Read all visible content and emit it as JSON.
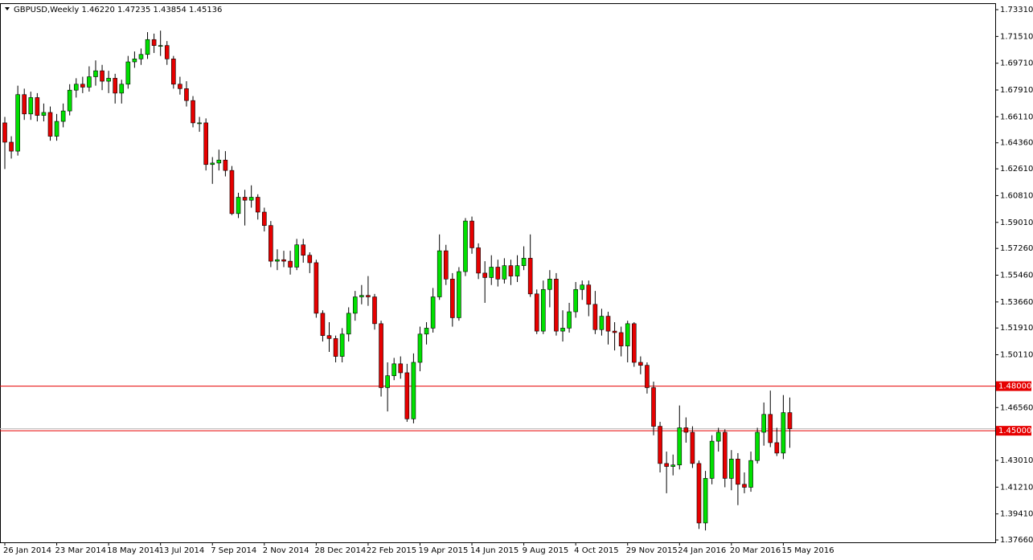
{
  "chart_data": {
    "type": "candlestick",
    "title": "GBPUSD,Weekly  1.46220 1.47235 1.43854 1.45136",
    "categories": [
      "26 Jan 2014",
      null,
      null,
      null,
      null,
      null,
      null,
      null,
      "23 Mar 2014",
      null,
      null,
      null,
      null,
      null,
      null,
      null,
      "18 May 2014",
      null,
      null,
      null,
      null,
      null,
      null,
      null,
      "13 Jul 2014",
      null,
      null,
      null,
      null,
      null,
      null,
      null,
      "7 Sep 2014",
      null,
      null,
      null,
      null,
      null,
      null,
      null,
      "2 Nov 2014",
      null,
      null,
      null,
      null,
      null,
      null,
      null,
      "28 Dec 2014",
      null,
      null,
      null,
      null,
      null,
      null,
      null,
      "22 Feb 2015",
      null,
      null,
      null,
      null,
      null,
      null,
      null,
      "19 Apr 2015",
      null,
      null,
      null,
      null,
      null,
      null,
      null,
      "14 Jun 2015",
      null,
      null,
      null,
      null,
      null,
      null,
      null,
      "9 Aug 2015",
      null,
      null,
      null,
      null,
      null,
      null,
      null,
      "4 Oct 2015",
      null,
      null,
      null,
      null,
      null,
      null,
      null,
      "29 Nov 2015",
      null,
      null,
      null,
      null,
      null,
      null,
      null,
      "24 Jan 2016",
      null,
      null,
      null,
      null,
      null,
      null,
      null,
      "20 Mar 2016",
      null,
      null,
      null,
      null,
      null,
      null,
      null,
      "15 May 2016",
      null
    ],
    "open": [
      1.657,
      1.644,
      1.638,
      1.676,
      1.663,
      1.674,
      1.662,
      1.664,
      1.648,
      1.658,
      1.665,
      1.679,
      1.683,
      1.681,
      1.688,
      1.692,
      1.685,
      1.687,
      1.677,
      1.683,
      1.698,
      1.7,
      1.703,
      1.713,
      1.709,
      1.709,
      1.7,
      1.683,
      1.68,
      1.672,
      1.657,
      1.657,
      1.629,
      1.63,
      1.632,
      1.625,
      1.596,
      1.607,
      1.605,
      1.607,
      1.597,
      1.588,
      1.564,
      1.565,
      1.564,
      1.56,
      1.575,
      1.568,
      1.563,
      1.529,
      1.514,
      1.512,
      1.5,
      1.515,
      1.529,
      1.54,
      1.541,
      1.54,
      1.522,
      1.479,
      1.487,
      1.495,
      1.489,
      1.458,
      1.496,
      1.515,
      1.519,
      1.54,
      1.571,
      1.552,
      1.526,
      1.557,
      1.591,
      1.573,
      1.556,
      1.553,
      1.56,
      1.552,
      1.561,
      1.554,
      1.561,
      1.566,
      1.542,
      1.517,
      1.545,
      1.552,
      1.517,
      1.519,
      1.53,
      1.545,
      1.548,
      1.535,
      1.518,
      1.527,
      1.517,
      1.516,
      1.507,
      1.522,
      1.496,
      1.494,
      1.479,
      1.453,
      1.428,
      1.426,
      1.427,
      1.452,
      1.449,
      1.428,
      1.388,
      1.418,
      1.443,
      1.449,
      1.418,
      1.431,
      1.414,
      1.412,
      1.43,
      1.449,
      1.461,
      1.442,
      1.435,
      1.4622
    ],
    "high": [
      1.661,
      1.648,
      1.682,
      1.68,
      1.678,
      1.677,
      1.67,
      1.668,
      1.663,
      1.67,
      1.683,
      1.687,
      1.688,
      1.695,
      1.699,
      1.696,
      1.692,
      1.69,
      1.686,
      1.702,
      1.705,
      1.707,
      1.718,
      1.717,
      1.719,
      1.712,
      1.702,
      1.688,
      1.685,
      1.675,
      1.661,
      1.66,
      1.634,
      1.639,
      1.638,
      1.628,
      1.61,
      1.612,
      1.615,
      1.609,
      1.6,
      1.591,
      1.572,
      1.571,
      1.571,
      1.579,
      1.579,
      1.57,
      1.565,
      1.531,
      1.523,
      1.514,
      1.519,
      1.533,
      1.544,
      1.548,
      1.554,
      1.542,
      1.524,
      1.496,
      1.499,
      1.5,
      1.495,
      1.502,
      1.52,
      1.523,
      1.546,
      1.582,
      1.575,
      1.556,
      1.56,
      1.593,
      1.594,
      1.576,
      1.564,
      1.568,
      1.565,
      1.566,
      1.565,
      1.568,
      1.574,
      1.582,
      1.545,
      1.551,
      1.558,
      1.556,
      1.531,
      1.536,
      1.55,
      1.551,
      1.551,
      1.544,
      1.532,
      1.53,
      1.523,
      1.52,
      1.524,
      1.523,
      1.5,
      1.496,
      1.483,
      1.456,
      1.436,
      1.434,
      1.467,
      1.459,
      1.453,
      1.43,
      1.423,
      1.447,
      1.452,
      1.451,
      1.437,
      1.435,
      1.422,
      1.436,
      1.452,
      1.469,
      1.477,
      1.452,
      1.474,
      1.47235
    ],
    "low": [
      1.626,
      1.633,
      1.635,
      1.659,
      1.659,
      1.658,
      1.658,
      1.645,
      1.645,
      1.654,
      1.662,
      1.674,
      1.677,
      1.678,
      1.682,
      1.679,
      1.677,
      1.67,
      1.67,
      1.68,
      1.694,
      1.696,
      1.7,
      1.704,
      1.702,
      1.696,
      1.68,
      1.676,
      1.668,
      1.654,
      1.651,
      1.625,
      1.616,
      1.625,
      1.621,
      1.595,
      1.593,
      1.588,
      1.6,
      1.592,
      1.584,
      1.56,
      1.558,
      1.56,
      1.555,
      1.558,
      1.563,
      1.556,
      1.526,
      1.51,
      1.503,
      1.496,
      1.496,
      1.51,
      1.524,
      1.535,
      1.534,
      1.518,
      1.473,
      1.463,
      1.484,
      1.485,
      1.456,
      1.455,
      1.49,
      1.508,
      1.516,
      1.538,
      1.548,
      1.52,
      1.524,
      1.554,
      1.569,
      1.552,
      1.536,
      1.548,
      1.547,
      1.549,
      1.548,
      1.55,
      1.558,
      1.54,
      1.515,
      1.515,
      1.533,
      1.514,
      1.51,
      1.516,
      1.526,
      1.538,
      1.527,
      1.515,
      1.514,
      1.508,
      1.504,
      1.5,
      1.496,
      1.493,
      1.488,
      1.475,
      1.447,
      1.422,
      1.408,
      1.42,
      1.424,
      1.442,
      1.425,
      1.384,
      1.383,
      1.414,
      1.436,
      1.412,
      1.41,
      1.4,
      1.408,
      1.409,
      1.428,
      1.44,
      1.439,
      1.433,
      1.431,
      1.43854
    ],
    "close": [
      1.644,
      1.638,
      1.676,
      1.663,
      1.674,
      1.662,
      1.664,
      1.648,
      1.658,
      1.665,
      1.679,
      1.683,
      1.681,
      1.688,
      1.692,
      1.685,
      1.687,
      1.677,
      1.683,
      1.698,
      1.7,
      1.703,
      1.713,
      1.709,
      1.709,
      1.7,
      1.683,
      1.68,
      1.672,
      1.657,
      1.657,
      1.629,
      1.63,
      1.632,
      1.625,
      1.596,
      1.607,
      1.605,
      1.607,
      1.597,
      1.588,
      1.564,
      1.565,
      1.564,
      1.56,
      1.575,
      1.568,
      1.563,
      1.529,
      1.514,
      1.512,
      1.5,
      1.515,
      1.529,
      1.54,
      1.541,
      1.54,
      1.522,
      1.479,
      1.487,
      1.495,
      1.489,
      1.458,
      1.496,
      1.515,
      1.519,
      1.54,
      1.571,
      1.552,
      1.526,
      1.557,
      1.591,
      1.573,
      1.556,
      1.553,
      1.56,
      1.552,
      1.561,
      1.554,
      1.561,
      1.566,
      1.542,
      1.517,
      1.545,
      1.552,
      1.517,
      1.519,
      1.53,
      1.545,
      1.548,
      1.535,
      1.518,
      1.527,
      1.517,
      1.516,
      1.507,
      1.522,
      1.496,
      1.494,
      1.479,
      1.453,
      1.428,
      1.426,
      1.427,
      1.452,
      1.449,
      1.428,
      1.388,
      1.418,
      1.443,
      1.449,
      1.418,
      1.431,
      1.414,
      1.412,
      1.43,
      1.449,
      1.461,
      1.442,
      1.435,
      1.4622,
      1.45136
    ],
    "up_color": "#00e000",
    "down_color": "#e60000",
    "ylim": [
      1.375,
      1.7369
    ],
    "yticks": [
      {
        "value": 1.7331,
        "label": "1.73310"
      },
      {
        "value": 1.7151,
        "label": "1.71510"
      },
      {
        "value": 1.6971,
        "label": "1.69710"
      },
      {
        "value": 1.6791,
        "label": "1.67910"
      },
      {
        "value": 1.6611,
        "label": "1.66110"
      },
      {
        "value": 1.6436,
        "label": "1.64360"
      },
      {
        "value": 1.6261,
        "label": "1.62610"
      },
      {
        "value": 1.6081,
        "label": "1.60810"
      },
      {
        "value": 1.5901,
        "label": "1.59010"
      },
      {
        "value": 1.5726,
        "label": "1.57260"
      },
      {
        "value": 1.5546,
        "label": "1.55460"
      },
      {
        "value": 1.5366,
        "label": "1.53660"
      },
      {
        "value": 1.5191,
        "label": "1.51910"
      },
      {
        "value": 1.5011,
        "label": "1.50110"
      },
      {
        "value": 1.4656,
        "label": "1.46560"
      },
      {
        "value": 1.4301,
        "label": "1.43010"
      },
      {
        "value": 1.4121,
        "label": "1.41210"
      },
      {
        "value": 1.3941,
        "label": "1.39410"
      },
      {
        "value": 1.3766,
        "label": "1.37660"
      }
    ],
    "levels": [
      {
        "value": 1.48,
        "label": "1.48000"
      },
      {
        "value": 1.45,
        "label": "1.45000"
      }
    ],
    "level_color": "#e60000",
    "grid": false
  }
}
